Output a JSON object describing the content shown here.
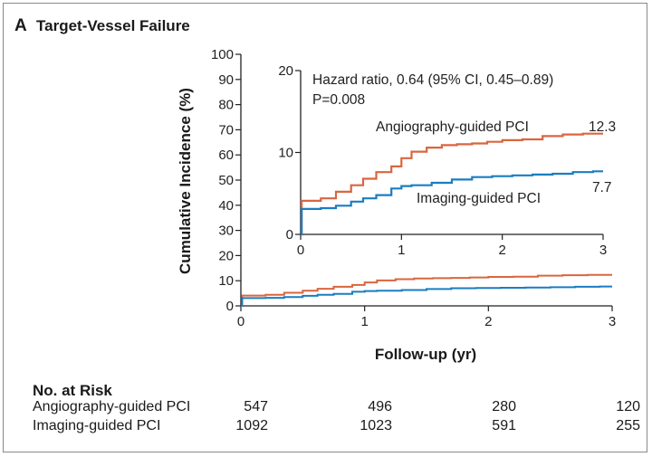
{
  "panel": {
    "letter": "A",
    "title": "Target-Vessel Failure"
  },
  "chart_data": {
    "type": "line",
    "xlabel": "Follow-up (yr)",
    "ylabel": "Cumulative Incidence (%)",
    "xlim": [
      0,
      3
    ],
    "ylim": [
      0,
      100
    ],
    "x_ticks": [
      "0",
      "1",
      "2",
      "3"
    ],
    "y_ticks": [
      "0",
      "10",
      "20",
      "30",
      "40",
      "50",
      "60",
      "70",
      "80",
      "90",
      "100"
    ],
    "series": [
      {
        "name": "Angiography-guided PCI",
        "color": "#d9663f",
        "points": [
          [
            0,
            0
          ],
          [
            0.01,
            4.1
          ],
          [
            0.2,
            4.4
          ],
          [
            0.35,
            5.2
          ],
          [
            0.5,
            6.0
          ],
          [
            0.62,
            6.8
          ],
          [
            0.75,
            7.6
          ],
          [
            0.9,
            8.3
          ],
          [
            1.0,
            9.3
          ],
          [
            1.1,
            10.1
          ],
          [
            1.25,
            10.6
          ],
          [
            1.4,
            10.9
          ],
          [
            1.55,
            11.0
          ],
          [
            1.7,
            11.1
          ],
          [
            1.85,
            11.3
          ],
          [
            2.0,
            11.5
          ],
          [
            2.2,
            11.6
          ],
          [
            2.4,
            12.0
          ],
          [
            2.6,
            12.2
          ],
          [
            2.8,
            12.3
          ],
          [
            3.0,
            12.3
          ]
        ],
        "end_label": "12.3"
      },
      {
        "name": "Imaging-guided PCI",
        "color": "#1a7dc1",
        "points": [
          [
            0,
            0
          ],
          [
            0.01,
            3.1
          ],
          [
            0.2,
            3.2
          ],
          [
            0.35,
            3.5
          ],
          [
            0.5,
            4.0
          ],
          [
            0.62,
            4.4
          ],
          [
            0.75,
            4.8
          ],
          [
            0.9,
            5.6
          ],
          [
            1.0,
            5.9
          ],
          [
            1.1,
            6.0
          ],
          [
            1.3,
            6.3
          ],
          [
            1.5,
            6.7
          ],
          [
            1.7,
            7.0
          ],
          [
            1.9,
            7.1
          ],
          [
            2.1,
            7.2
          ],
          [
            2.3,
            7.3
          ],
          [
            2.5,
            7.4
          ],
          [
            2.7,
            7.6
          ],
          [
            2.9,
            7.7
          ],
          [
            3.0,
            7.7
          ]
        ],
        "end_label": "7.7"
      }
    ],
    "inset": {
      "ylim": [
        0,
        20
      ],
      "y_ticks": [
        "0",
        "10",
        "20"
      ],
      "x_ticks": [
        "0",
        "1",
        "2",
        "3"
      ],
      "annotation": [
        "Hazard ratio, 0.64 (95% CI, 0.45–0.89)",
        "P=0.008"
      ]
    }
  },
  "risk_table": {
    "title": "No. at Risk",
    "rows": [
      {
        "label": "Angiography-guided PCI",
        "values": [
          "547",
          "496",
          "280",
          "120"
        ]
      },
      {
        "label": "Imaging-guided PCI",
        "values": [
          "1092",
          "1023",
          "591",
          "255"
        ]
      }
    ]
  }
}
